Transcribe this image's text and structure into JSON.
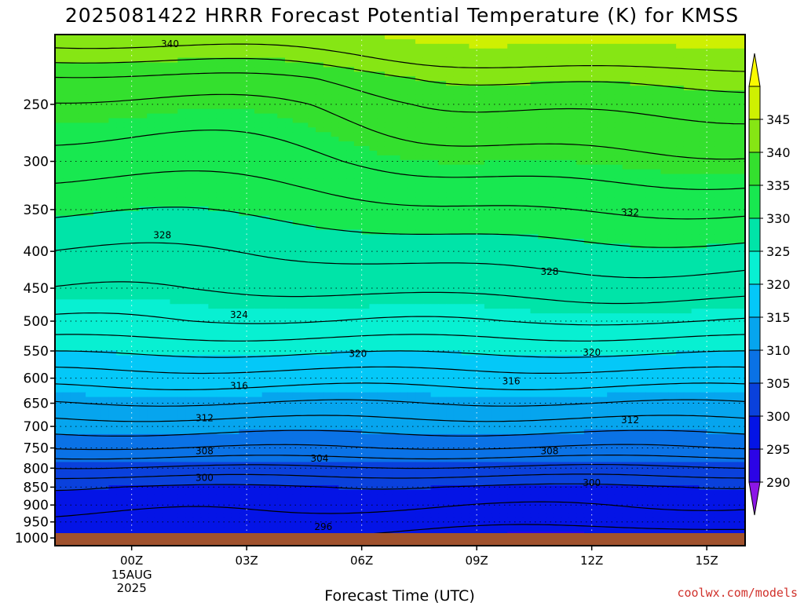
{
  "chart_data": {
    "type": "heatmap",
    "title": "2025081422 HRRR Forecast Potential Temperature (K) for KMSS",
    "xlabel": "Forecast Time (UTC)",
    "ylabel": "",
    "y_axis": {
      "scale": "log",
      "inverted": true,
      "range": [
        1025,
        200
      ],
      "tick_labels": [
        "250",
        "300",
        "350",
        "400",
        "450",
        "500",
        "550",
        "600",
        "650",
        "700",
        "750",
        "800",
        "850",
        "900",
        "950",
        "1000"
      ]
    },
    "x_axis": {
      "range_hours": [
        -2,
        16
      ],
      "ticks": [
        {
          "hour": 0,
          "label": "00Z",
          "sub": [
            "15AUG",
            "2025"
          ]
        },
        {
          "hour": 3,
          "label": "03Z"
        },
        {
          "hour": 6,
          "label": "06Z"
        },
        {
          "hour": 9,
          "label": "09Z"
        },
        {
          "hour": 12,
          "label": "12Z"
        },
        {
          "hour": 15,
          "label": "15Z"
        }
      ]
    },
    "grid": true,
    "colorbar": {
      "levels": [
        285,
        290,
        295,
        300,
        305,
        310,
        315,
        320,
        325,
        330,
        335,
        340,
        345,
        350
      ],
      "tick_labels": [
        "290",
        "295",
        "300",
        "305",
        "310",
        "315",
        "320",
        "325",
        "330",
        "335",
        "340",
        "345"
      ],
      "colors": [
        "#8c16e6",
        "#2c04e6",
        "#0414e6",
        "#0a41dc",
        "#0a72e6",
        "#06a5ee",
        "#04c8f8",
        "#08f0d2",
        "#00e4a8",
        "#18e850",
        "#34e02e",
        "#86e614",
        "#cef002",
        "#fafa00"
      ]
    },
    "contour_labels": [
      {
        "text": "340",
        "hour": 1.0,
        "p": 206
      },
      {
        "text": "332",
        "hour": 13.0,
        "p": 353
      },
      {
        "text": "328",
        "hour": 0.8,
        "p": 380
      },
      {
        "text": "328",
        "hour": 10.9,
        "p": 427
      },
      {
        "text": "324",
        "hour": 2.8,
        "p": 490
      },
      {
        "text": "320",
        "hour": 5.9,
        "p": 555
      },
      {
        "text": "320",
        "hour": 12.0,
        "p": 553
      },
      {
        "text": "316",
        "hour": 2.8,
        "p": 615
      },
      {
        "text": "316",
        "hour": 9.9,
        "p": 606
      },
      {
        "text": "312",
        "hour": 1.9,
        "p": 682
      },
      {
        "text": "312",
        "hour": 13.0,
        "p": 686
      },
      {
        "text": "308",
        "hour": 1.9,
        "p": 757
      },
      {
        "text": "308",
        "hour": 10.9,
        "p": 757
      },
      {
        "text": "304",
        "hour": 4.9,
        "p": 776
      },
      {
        "text": "300",
        "hour": 1.9,
        "p": 825
      },
      {
        "text": "300",
        "hour": 12.0,
        "p": 838
      },
      {
        "text": "296",
        "hour": 5.0,
        "p": 965
      }
    ],
    "contour_levels": [
      296,
      298,
      300,
      302,
      304,
      306,
      308,
      310,
      312,
      314,
      316,
      318,
      320,
      322,
      324,
      326,
      328,
      330,
      332,
      334,
      336,
      338,
      340,
      342
    ]
  },
  "credit": "coolwx.com/models",
  "colors": {
    "ground": "#a0522d",
    "contour": "#000000",
    "grid": "#000000"
  }
}
